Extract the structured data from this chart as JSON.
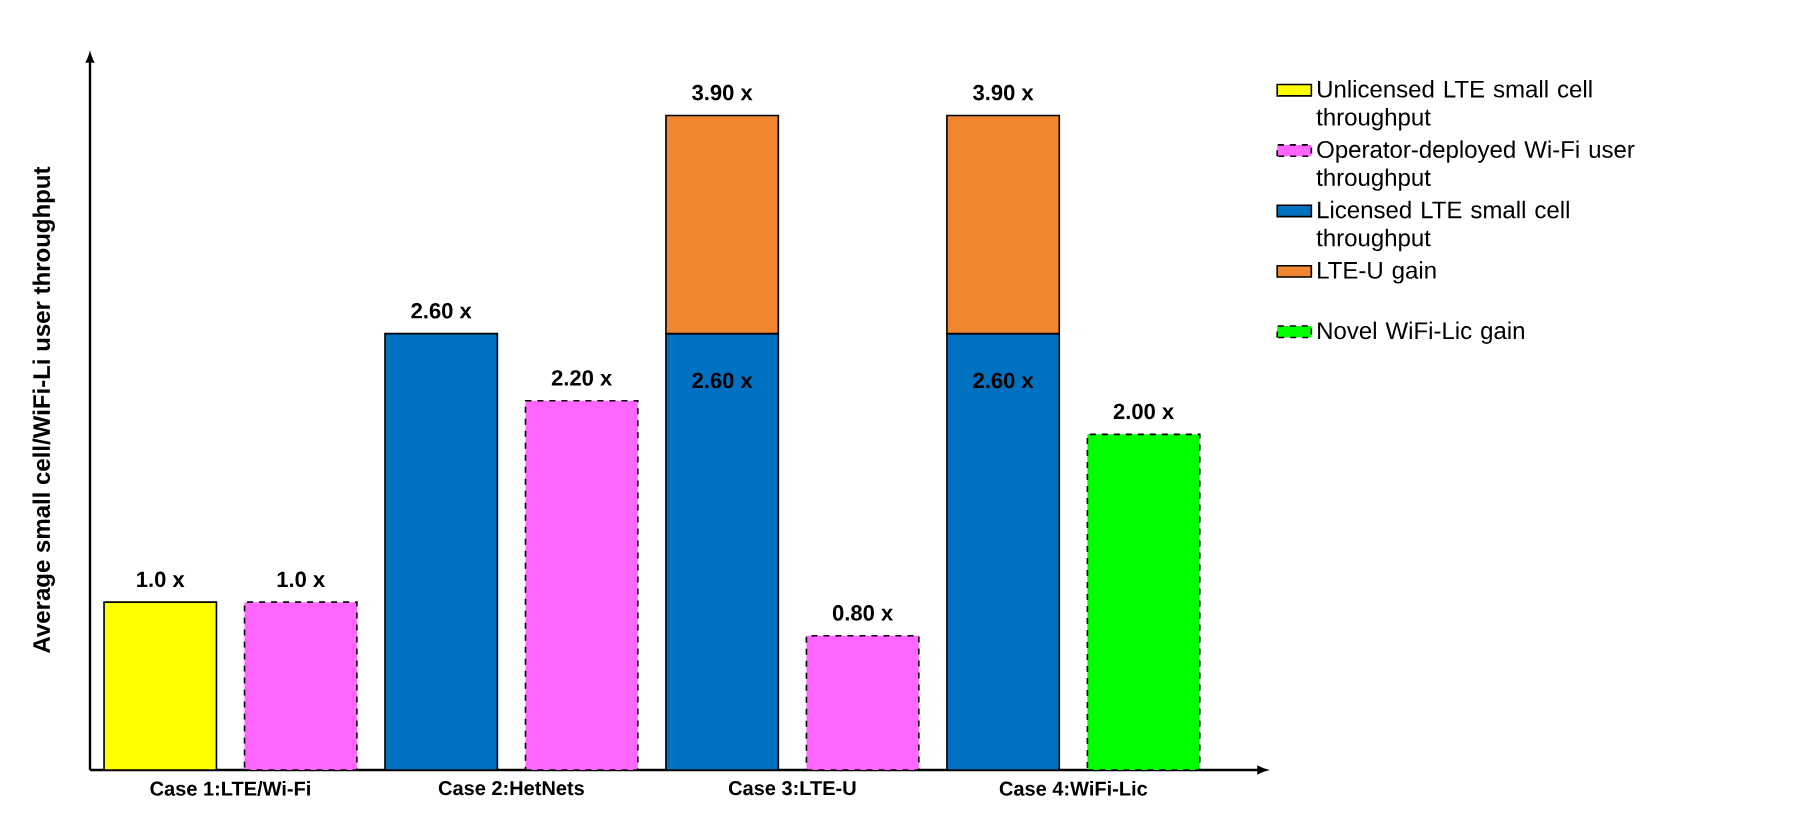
{
  "chart_data": {
    "type": "bar",
    "ylabel": "Average small cell/WiFi-Li user throughput",
    "stacked": true,
    "legend": "right",
    "categories": [
      "Case 1:LTE/Wi-Fi",
      null,
      "Case 2:HetNets",
      null,
      "Case 3:LTE-U",
      null,
      "Case 4:WiFi-Lic",
      null
    ],
    "series": [
      {
        "name": "Unlicensed LTE small cell throughput",
        "color": "#ffff00",
        "values": [
          1.0,
          null,
          null,
          null,
          null,
          null,
          null,
          null
        ],
        "value_labels": [
          "1.0 x",
          null,
          null,
          null,
          null,
          null,
          null,
          null
        ]
      },
      {
        "name": "Operator-deployed Wi-Fi user throughput",
        "color": "#ff66ff",
        "line_style": "dashed",
        "values": [
          null,
          1.0,
          null,
          2.2,
          null,
          0.8,
          null,
          null
        ],
        "value_labels": [
          null,
          "1.0 x",
          null,
          "2.20 x",
          null,
          "0.80 x",
          null,
          null
        ]
      },
      {
        "name": "Licensed LTE small cell throughput",
        "color": "#0070c0",
        "values": [
          null,
          null,
          2.6,
          null,
          2.6,
          null,
          2.6,
          null
        ],
        "value_labels": [
          null,
          null,
          "2.60 x",
          null,
          "2.60 x",
          null,
          "2.60 x",
          null
        ]
      },
      {
        "name": "LTE-U gain",
        "color": "#f0862f",
        "values": [
          null,
          null,
          null,
          null,
          1.3,
          null,
          1.3,
          null
        ]
      },
      {
        "name": "Novel WiFi-Lic gain",
        "color": "#00ff00",
        "line_style": "dashed",
        "values": [
          null,
          null,
          null,
          null,
          null,
          null,
          null,
          2.0
        ],
        "value_labels": [
          null,
          null,
          null,
          null,
          null,
          null,
          null,
          "2.00 x"
        ]
      }
    ],
    "totals": [
      null,
      null,
      null,
      null,
      "3.90 x",
      null,
      "3.90 x",
      null
    ]
  }
}
